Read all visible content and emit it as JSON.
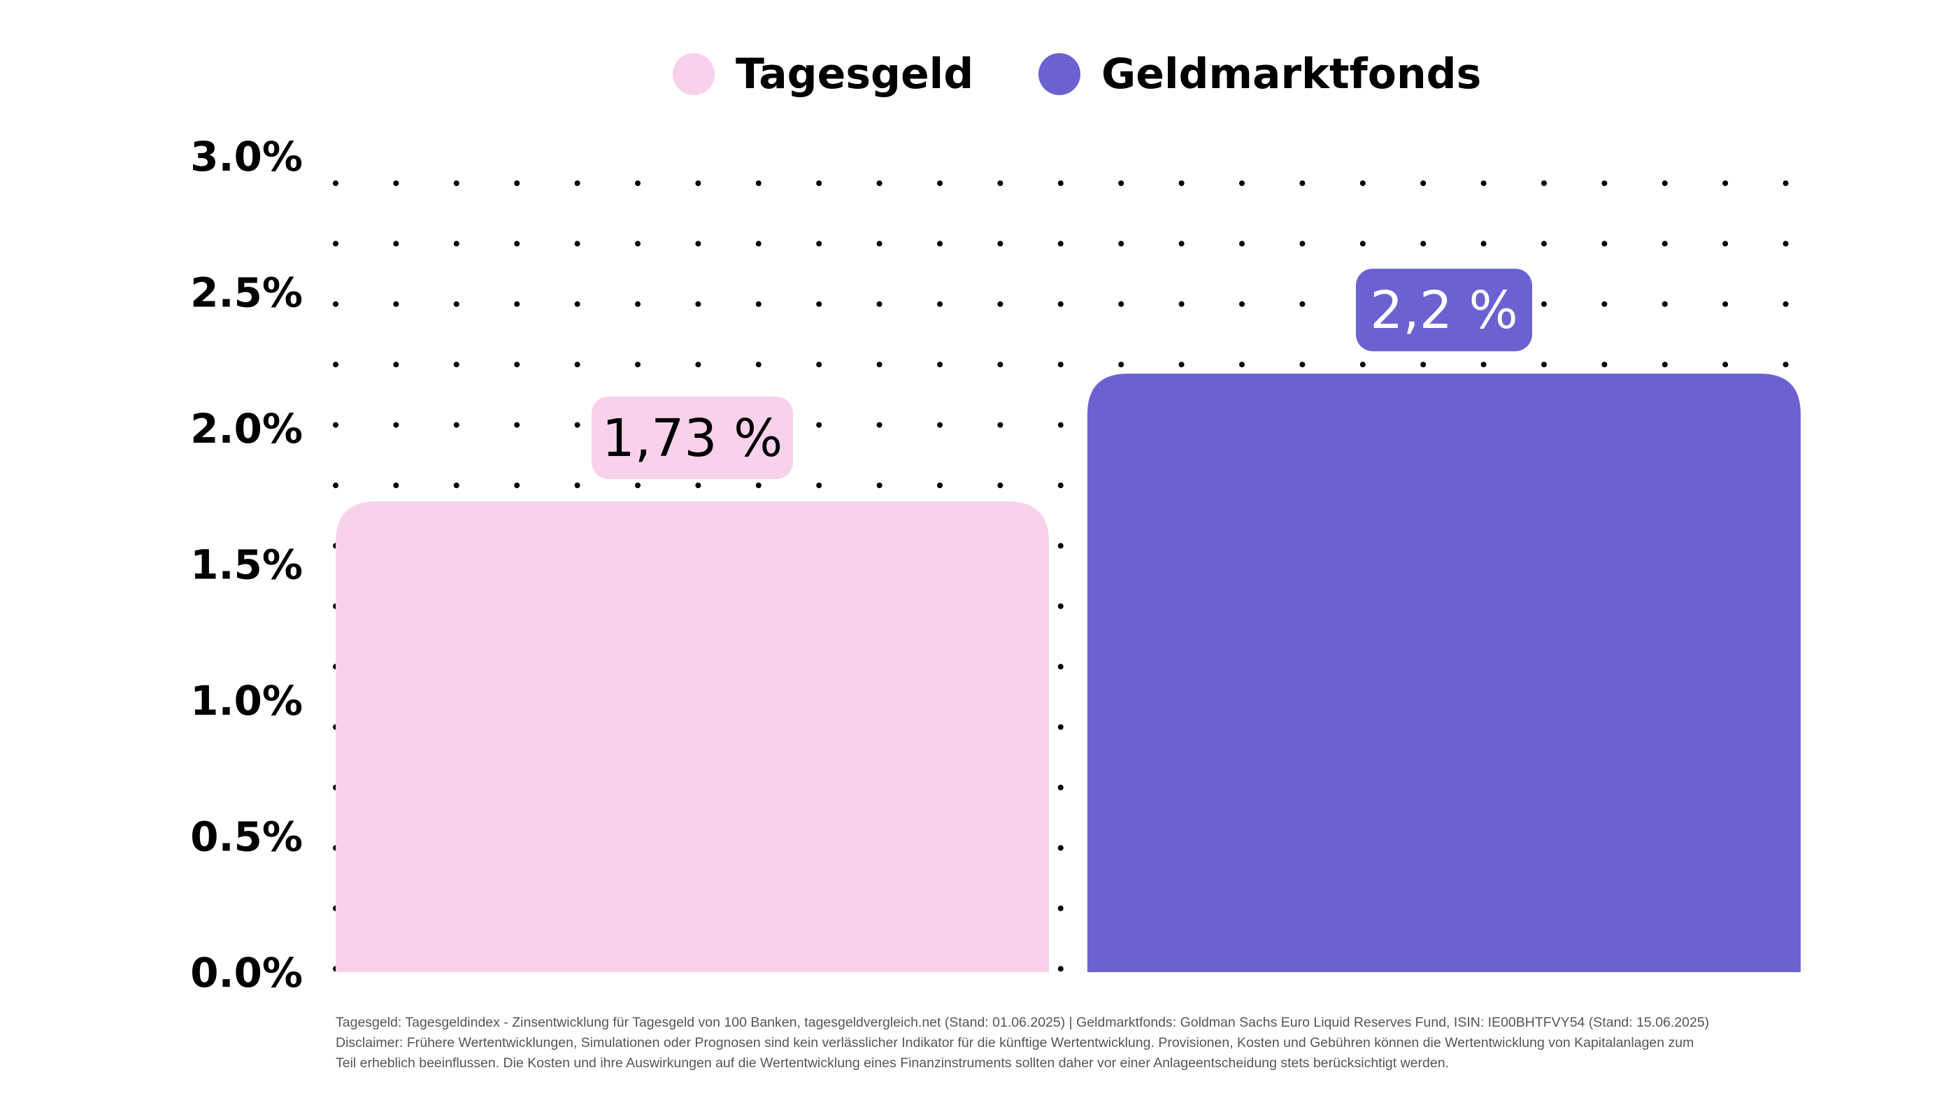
{
  "chart_data": {
    "type": "bar",
    "categories": [
      "Tagesgeld",
      "Geldmarktfonds"
    ],
    "values": [
      1.73,
      2.2
    ],
    "value_labels": [
      "1,73 %",
      "2,2 %"
    ],
    "colors": [
      "#f8d1eb",
      "#6b61d1"
    ],
    "label_text_colors": [
      "#000000",
      "#ffffff"
    ],
    "ylim": [
      0,
      3
    ],
    "yticks": [
      "0.0%",
      "0.5%",
      "1.0%",
      "1.5%",
      "2.0%",
      "2.5%",
      "3.0%"
    ],
    "legend": {
      "placement": "top-center",
      "entries": [
        "Tagesgeld",
        "Geldmarktfonds"
      ]
    },
    "grid": "dotted",
    "title": "",
    "xlabel": "",
    "ylabel": ""
  },
  "footer": {
    "source_line": "Tagesgeld: Tagesgeldindex - Zinsentwicklung für Tagesgeld von 100 Banken, tagesgeldvergleich.net (Stand: 01.06.2025)  | Geldmarktfonds: Goldman Sachs Euro Liquid Reserves Fund, ISIN: IE00BHTFVY54 (Stand: 15.06.2025)",
    "disclaimer_line1": "Disclaimer: Frühere Wertentwicklungen, Simulationen oder Prognosen sind kein verlässlicher Indikator für die künftige Wertentwicklung. Provisionen, Kosten und Gebühren können die Wertentwicklung von Kapitalanlagen zum",
    "disclaimer_line2": "Teil erheblich beeinflussen. Die Kosten und ihre Auswirkungen auf die Wertentwicklung eines Finanzinstruments sollten daher vor einer Anlageentscheidung stets berücksichtigt werden."
  }
}
